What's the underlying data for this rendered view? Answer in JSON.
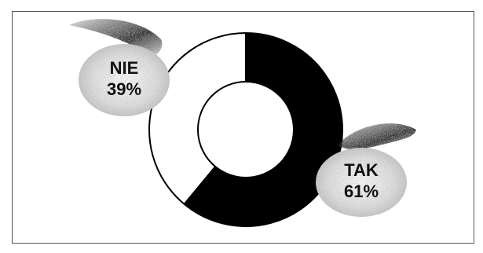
{
  "chart_data": {
    "type": "pie",
    "style": "donut",
    "title": "",
    "slices": [
      {
        "label": "TAK",
        "value": 61,
        "value_label": "61%",
        "color": "#000000"
      },
      {
        "label": "NIE",
        "value": 39,
        "value_label": "39%",
        "color": "#ffffff"
      }
    ],
    "legend": "none",
    "labels_on_chart": true
  }
}
